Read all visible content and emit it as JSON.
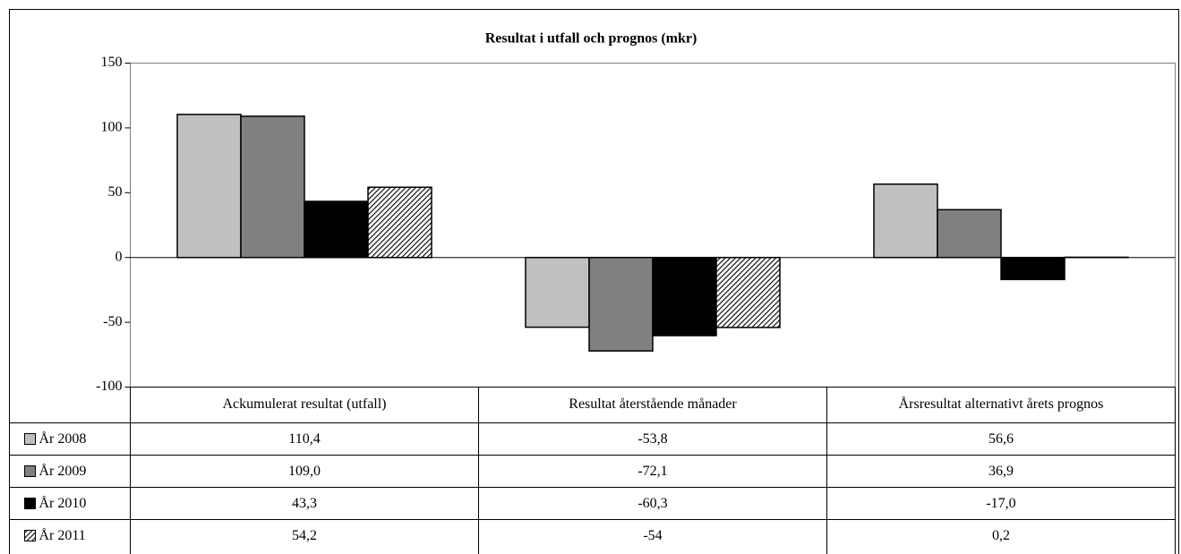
{
  "chart_data": {
    "type": "bar",
    "title": "Resultat i utfall och prognos (mkr)",
    "categories": [
      "Ackumulerat resultat (utfall)",
      "Resultat återstående månader",
      "Årsresultat alternativt årets prognos"
    ],
    "series": [
      {
        "name": "År 2008",
        "color": "#c0c0c0",
        "values": [
          110.4,
          -53.8,
          56.6
        ],
        "value_labels": [
          "110,4",
          "-53,8",
          "56,6"
        ]
      },
      {
        "name": "År 2009",
        "color": "#808080",
        "values": [
          109.0,
          -72.1,
          36.9
        ],
        "value_labels": [
          "109,0",
          "-72,1",
          "36,9"
        ]
      },
      {
        "name": "År 2010",
        "color": "#000000",
        "values": [
          43.3,
          -60.3,
          -17.0
        ],
        "value_labels": [
          "43,3",
          "-60,3",
          "-17,0"
        ]
      },
      {
        "name": "År 2011",
        "color": "#000000",
        "pattern": "hatch",
        "values": [
          54.2,
          -54,
          0.2
        ],
        "value_labels": [
          "54,2",
          "-54",
          "0,2"
        ]
      }
    ],
    "ylim": [
      -100,
      150
    ],
    "yticks": [
      150,
      100,
      50,
      0,
      -50,
      -100
    ]
  }
}
